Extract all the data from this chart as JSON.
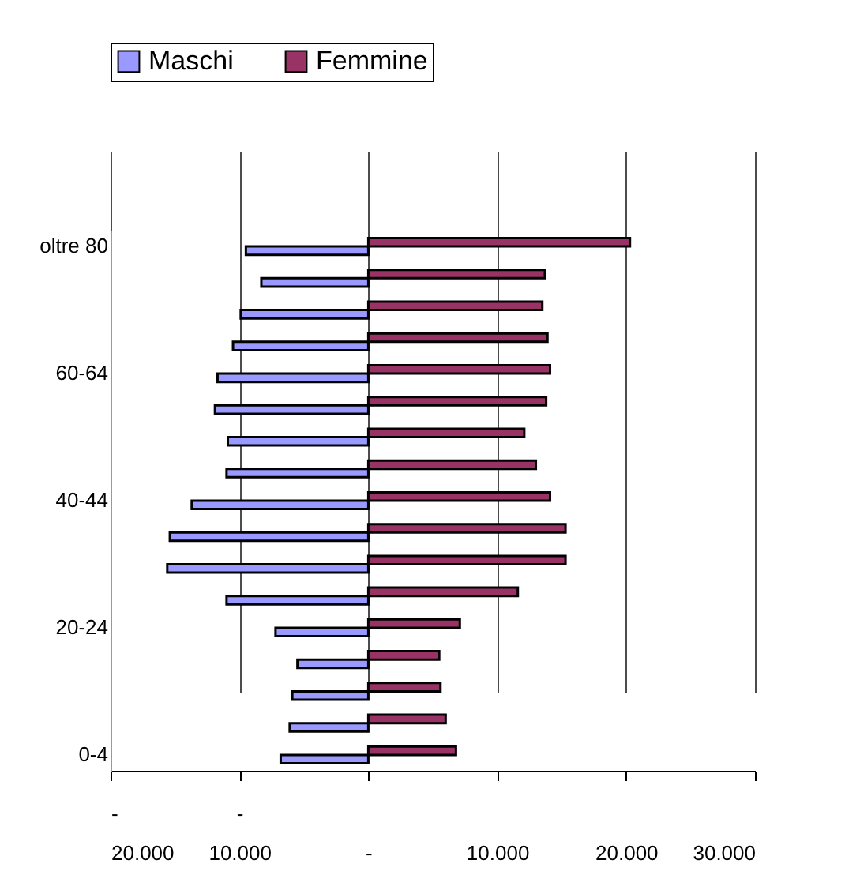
{
  "chart_data": {
    "type": "bar",
    "orientation": "horizontal",
    "categories": [
      "oltre 80",
      null,
      null,
      null,
      "60-64",
      null,
      null,
      null,
      "40-44",
      null,
      null,
      null,
      "20-24",
      null,
      null,
      null,
      "0-4"
    ],
    "series": [
      {
        "name": "Maschi",
        "color": "#9999ff",
        "values": [
          -9500,
          -8300,
          -9900,
          -10500,
          -11700,
          -11900,
          -10900,
          -11000,
          -13700,
          -15400,
          -15600,
          -11000,
          -7200,
          -5500,
          -5900,
          -6100,
          -6800
        ]
      },
      {
        "name": "Femmine",
        "color": "#993366",
        "values": [
          20300,
          13700,
          13500,
          13900,
          14100,
          13800,
          12100,
          13000,
          14100,
          15300,
          15300,
          11600,
          7100,
          5500,
          5600,
          6000,
          6800
        ]
      }
    ],
    "xlim": [
      -20000,
      30000
    ],
    "xticks": [
      {
        "value": -20000,
        "label": "-\n20.000"
      },
      {
        "value": -10000,
        "label": "-\n10.000"
      },
      {
        "value": 0,
        "label": "-"
      },
      {
        "value": 10000,
        "label": "10.000"
      },
      {
        "value": 20000,
        "label": "20.000"
      },
      {
        "value": 30000,
        "label": "30.000"
      }
    ],
    "grid": "x",
    "legend": "top"
  }
}
